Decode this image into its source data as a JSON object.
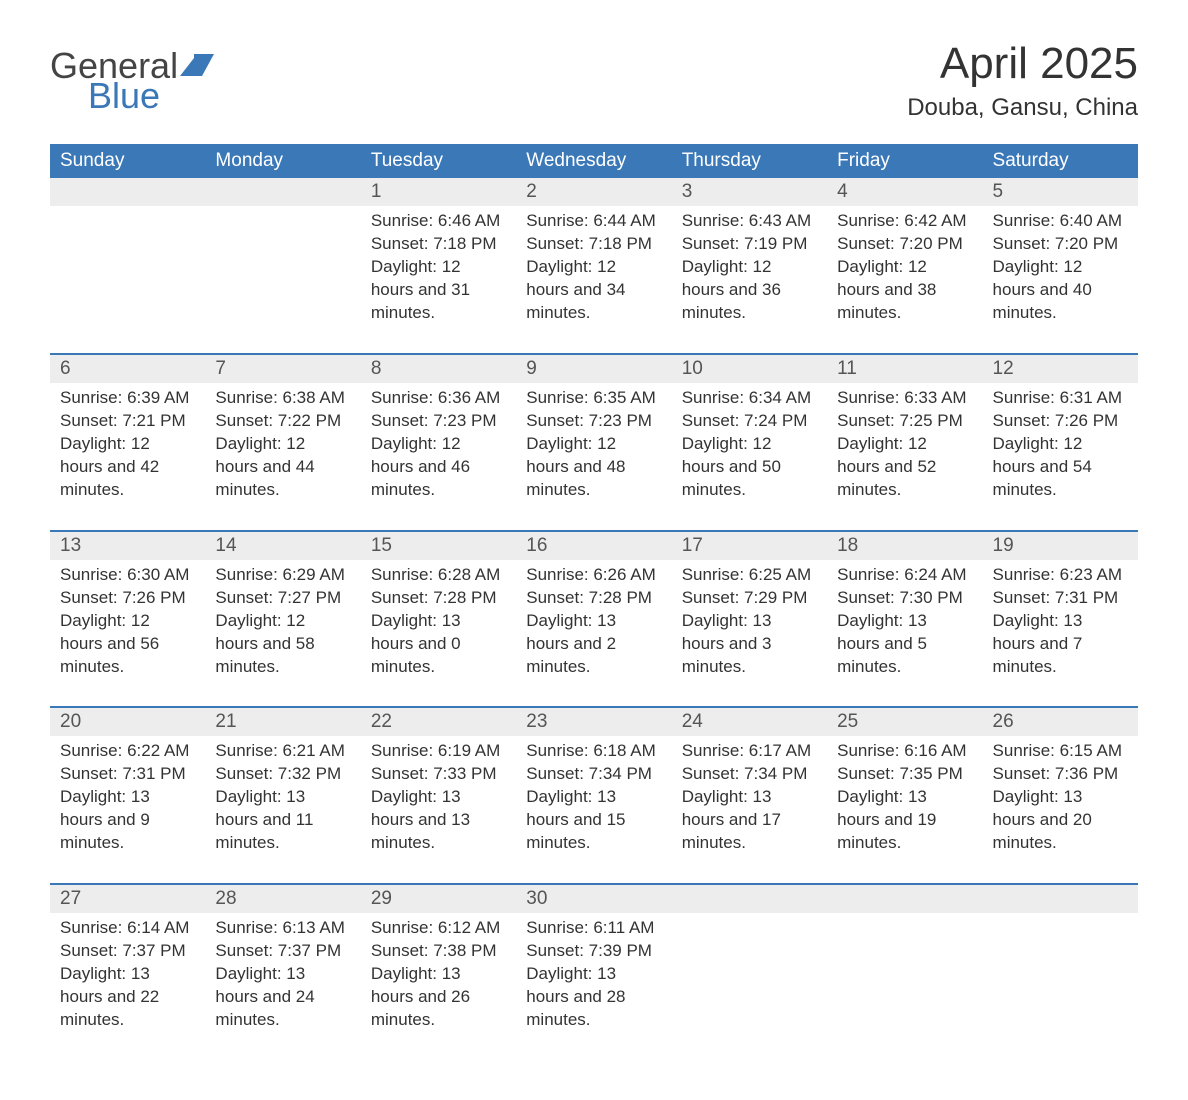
{
  "logo": {
    "general": "General",
    "blue": "Blue",
    "icon_color": "#3b78b8"
  },
  "header": {
    "title": "April 2025",
    "subtitle": "Douba, Gansu, China"
  },
  "style": {
    "header_bg": "#3b78b8",
    "header_text": "#ffffff",
    "daynum_bg": "#ededed",
    "daynum_text": "#555555",
    "body_text": "#333333",
    "row_divider": "#3b78b8",
    "title_fontsize": 44,
    "subtitle_fontsize": 24,
    "th_fontsize": 19,
    "cell_fontsize": 17
  },
  "calendar": {
    "type": "table",
    "headers": [
      "Sunday",
      "Monday",
      "Tuesday",
      "Wednesday",
      "Thursday",
      "Friday",
      "Saturday"
    ],
    "weeks": [
      [
        null,
        null,
        {
          "day": "1",
          "sunrise": "6:46 AM",
          "sunset": "7:18 PM",
          "daylight": "12 hours and 31 minutes."
        },
        {
          "day": "2",
          "sunrise": "6:44 AM",
          "sunset": "7:18 PM",
          "daylight": "12 hours and 34 minutes."
        },
        {
          "day": "3",
          "sunrise": "6:43 AM",
          "sunset": "7:19 PM",
          "daylight": "12 hours and 36 minutes."
        },
        {
          "day": "4",
          "sunrise": "6:42 AM",
          "sunset": "7:20 PM",
          "daylight": "12 hours and 38 minutes."
        },
        {
          "day": "5",
          "sunrise": "6:40 AM",
          "sunset": "7:20 PM",
          "daylight": "12 hours and 40 minutes."
        }
      ],
      [
        {
          "day": "6",
          "sunrise": "6:39 AM",
          "sunset": "7:21 PM",
          "daylight": "12 hours and 42 minutes."
        },
        {
          "day": "7",
          "sunrise": "6:38 AM",
          "sunset": "7:22 PM",
          "daylight": "12 hours and 44 minutes."
        },
        {
          "day": "8",
          "sunrise": "6:36 AM",
          "sunset": "7:23 PM",
          "daylight": "12 hours and 46 minutes."
        },
        {
          "day": "9",
          "sunrise": "6:35 AM",
          "sunset": "7:23 PM",
          "daylight": "12 hours and 48 minutes."
        },
        {
          "day": "10",
          "sunrise": "6:34 AM",
          "sunset": "7:24 PM",
          "daylight": "12 hours and 50 minutes."
        },
        {
          "day": "11",
          "sunrise": "6:33 AM",
          "sunset": "7:25 PM",
          "daylight": "12 hours and 52 minutes."
        },
        {
          "day": "12",
          "sunrise": "6:31 AM",
          "sunset": "7:26 PM",
          "daylight": "12 hours and 54 minutes."
        }
      ],
      [
        {
          "day": "13",
          "sunrise": "6:30 AM",
          "sunset": "7:26 PM",
          "daylight": "12 hours and 56 minutes."
        },
        {
          "day": "14",
          "sunrise": "6:29 AM",
          "sunset": "7:27 PM",
          "daylight": "12 hours and 58 minutes."
        },
        {
          "day": "15",
          "sunrise": "6:28 AM",
          "sunset": "7:28 PM",
          "daylight": "13 hours and 0 minutes."
        },
        {
          "day": "16",
          "sunrise": "6:26 AM",
          "sunset": "7:28 PM",
          "daylight": "13 hours and 2 minutes."
        },
        {
          "day": "17",
          "sunrise": "6:25 AM",
          "sunset": "7:29 PM",
          "daylight": "13 hours and 3 minutes."
        },
        {
          "day": "18",
          "sunrise": "6:24 AM",
          "sunset": "7:30 PM",
          "daylight": "13 hours and 5 minutes."
        },
        {
          "day": "19",
          "sunrise": "6:23 AM",
          "sunset": "7:31 PM",
          "daylight": "13 hours and 7 minutes."
        }
      ],
      [
        {
          "day": "20",
          "sunrise": "6:22 AM",
          "sunset": "7:31 PM",
          "daylight": "13 hours and 9 minutes."
        },
        {
          "day": "21",
          "sunrise": "6:21 AM",
          "sunset": "7:32 PM",
          "daylight": "13 hours and 11 minutes."
        },
        {
          "day": "22",
          "sunrise": "6:19 AM",
          "sunset": "7:33 PM",
          "daylight": "13 hours and 13 minutes."
        },
        {
          "day": "23",
          "sunrise": "6:18 AM",
          "sunset": "7:34 PM",
          "daylight": "13 hours and 15 minutes."
        },
        {
          "day": "24",
          "sunrise": "6:17 AM",
          "sunset": "7:34 PM",
          "daylight": "13 hours and 17 minutes."
        },
        {
          "day": "25",
          "sunrise": "6:16 AM",
          "sunset": "7:35 PM",
          "daylight": "13 hours and 19 minutes."
        },
        {
          "day": "26",
          "sunrise": "6:15 AM",
          "sunset": "7:36 PM",
          "daylight": "13 hours and 20 minutes."
        }
      ],
      [
        {
          "day": "27",
          "sunrise": "6:14 AM",
          "sunset": "7:37 PM",
          "daylight": "13 hours and 22 minutes."
        },
        {
          "day": "28",
          "sunrise": "6:13 AM",
          "sunset": "7:37 PM",
          "daylight": "13 hours and 24 minutes."
        },
        {
          "day": "29",
          "sunrise": "6:12 AM",
          "sunset": "7:38 PM",
          "daylight": "13 hours and 26 minutes."
        },
        {
          "day": "30",
          "sunrise": "6:11 AM",
          "sunset": "7:39 PM",
          "daylight": "13 hours and 28 minutes."
        },
        null,
        null,
        null
      ]
    ],
    "labels": {
      "sunrise": "Sunrise:",
      "sunset": "Sunset:",
      "daylight": "Daylight:"
    }
  }
}
